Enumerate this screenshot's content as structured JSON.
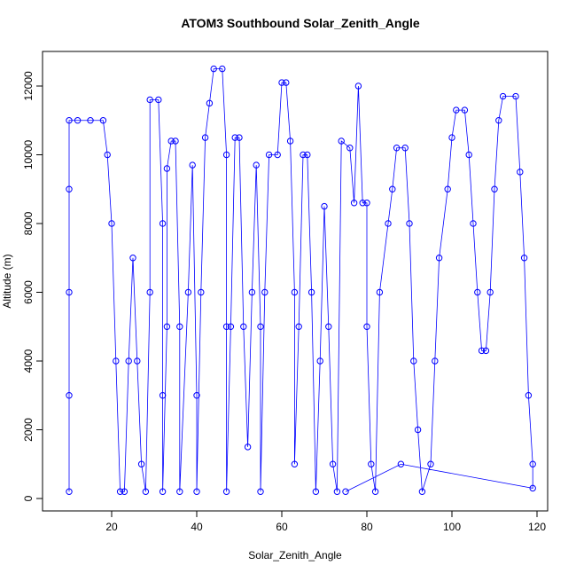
{
  "chart_data": {
    "type": "line",
    "markers": true,
    "title": "ATOM3 Southbound Solar_Zenith_Angle",
    "x_label": "Solar_Zenith_Angle",
    "y_label": "Altitude (m)",
    "xlim": [
      3.75,
      122.5
    ],
    "ylim": [
      -361,
      13006
    ],
    "xticks": [
      20,
      40,
      60,
      80,
      100,
      120
    ],
    "yticks": [
      0,
      2000,
      4000,
      6000,
      8000,
      10000,
      12000
    ],
    "series": [
      {
        "name": "Altitude",
        "color": "#0000ff",
        "x": [
          10,
          10,
          10,
          10,
          10,
          12,
          15,
          18,
          19,
          20,
          21,
          22,
          23,
          24,
          25,
          26,
          27,
          28,
          29,
          29,
          31,
          32,
          32,
          32,
          33,
          33,
          34,
          35,
          36,
          36,
          38,
          39,
          40,
          40,
          41,
          42,
          43,
          44,
          46,
          47,
          47,
          47,
          48,
          49,
          50,
          51,
          52,
          53,
          54,
          55,
          55,
          56,
          57,
          59,
          60,
          61,
          62,
          63,
          63,
          64,
          65,
          66,
          67,
          68,
          69,
          70,
          71,
          72,
          73,
          74,
          76,
          77,
          78,
          79,
          80,
          80,
          81,
          82,
          83,
          85,
          86,
          87,
          89,
          90,
          91,
          92,
          93,
          95,
          96,
          97,
          99,
          100,
          101,
          103,
          104,
          105,
          106,
          107,
          108,
          109,
          110,
          111,
          112,
          115,
          116,
          117,
          118,
          119,
          119,
          88,
          75
        ],
        "values": [
          200,
          3000,
          6000,
          9000,
          11000,
          11000,
          11000,
          11000,
          10000,
          8000,
          4000,
          200,
          200,
          4000,
          7000,
          4000,
          1000,
          200,
          6000,
          11600,
          11600,
          8000,
          3000,
          200,
          5000,
          9600,
          10400,
          10400,
          5000,
          200,
          6000,
          9700,
          3000,
          200,
          6000,
          10500,
          11500,
          12500,
          12500,
          10000,
          5000,
          200,
          5000,
          10500,
          10500,
          5000,
          1500,
          6000,
          9700,
          5000,
          200,
          6000,
          10000,
          10000,
          12100,
          12100,
          10400,
          6000,
          1000,
          5000,
          10000,
          10000,
          6000,
          200,
          4000,
          8500,
          5000,
          1000,
          200,
          10400,
          10200,
          8600,
          12000,
          8600,
          8600,
          5000,
          1000,
          200,
          6000,
          8000,
          9000,
          10200,
          10200,
          8000,
          4000,
          2000,
          200,
          1000,
          4000,
          7000,
          9000,
          10500,
          11300,
          11300,
          10000,
          8000,
          6000,
          4300,
          4300,
          6000,
          9000,
          11000,
          11700,
          11700,
          9500,
          7000,
          3000,
          1000,
          300,
          1000,
          200
        ]
      }
    ]
  }
}
